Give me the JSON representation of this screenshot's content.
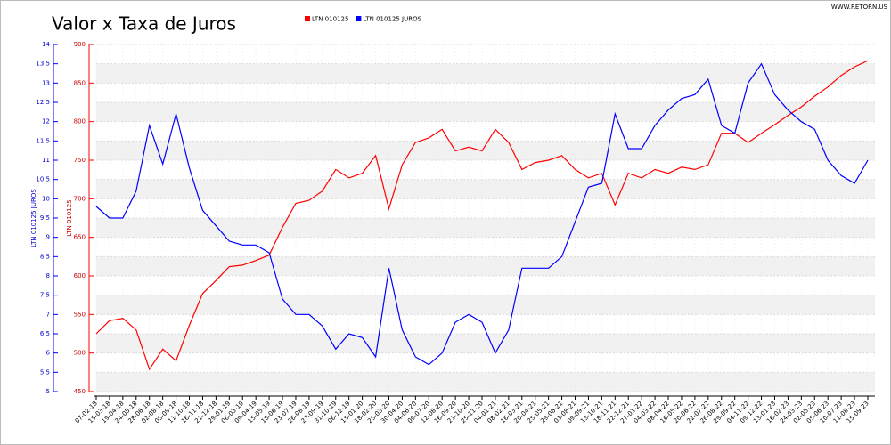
{
  "chart_data": {
    "type": "line",
    "title": "Valor x Taxa de Juros",
    "watermark": "WWW.RETORN.US",
    "categories": [
      "07-02-18",
      "15-03-18",
      "19-04-18",
      "24-05-18",
      "28-06-18",
      "02-08-18",
      "05-09-18",
      "11-10-18",
      "16-11-18",
      "21-12-18",
      "29-01-19",
      "06-03-19",
      "09-04-19",
      "15-05-19",
      "18-06-19",
      "23-07-19",
      "26-08-19",
      "27-09-19",
      "31-10-19",
      "06-12-19",
      "15-01-20",
      "18-02-20",
      "25-03-20",
      "30-04-20",
      "04-06-20",
      "09-07-20",
      "12-08-20",
      "16-09-20",
      "21-10-20",
      "25-11-20",
      "04-01-21",
      "08-02-21",
      "16-03-21",
      "20-04-21",
      "25-05-21",
      "29-06-21",
      "03-08-21",
      "09-09-21",
      "13-10-21",
      "18-11-21",
      "22-12-21",
      "27-01-22",
      "04-03-22",
      "08-04-22",
      "16-05-22",
      "20-06-22",
      "22-07-22",
      "26-08-22",
      "29-09-22",
      "04-11-22",
      "09-12-22",
      "13-01-23",
      "16-02-23",
      "24-03-23",
      "02-05-23",
      "05-06-23",
      "10-07-23",
      "11-08-23",
      "15-09-23"
    ],
    "series": [
      {
        "name": "LTN 010125",
        "color": "#ff0000",
        "axis": "y2",
        "values": [
          525,
          542,
          545,
          530,
          479,
          505,
          490,
          536,
          577,
          594,
          612,
          614,
          620,
          627,
          663,
          694,
          698,
          710,
          738,
          727,
          733,
          756,
          687,
          744,
          773,
          779,
          790,
          762,
          767,
          762,
          790,
          773,
          738,
          747,
          750,
          756,
          738,
          727,
          733,
          692,
          733,
          727,
          738,
          733,
          741,
          738,
          744,
          785,
          785,
          773,
          785,
          796,
          808,
          819,
          833,
          845,
          860,
          871,
          879
        ]
      },
      {
        "name": "LTN 010125 JUROS",
        "color": "#0000ff",
        "values": [
          9.8,
          9.5,
          9.5,
          10.2,
          11.9,
          10.9,
          12.2,
          10.8,
          9.7,
          9.3,
          8.9,
          8.8,
          8.8,
          8.6,
          7.4,
          7.0,
          7.0,
          6.7,
          6.1,
          6.5,
          6.4,
          5.9,
          8.2,
          6.6,
          5.9,
          5.7,
          6.0,
          6.8,
          7.0,
          6.8,
          6.0,
          6.6,
          8.2,
          8.2,
          8.2,
          8.5,
          9.4,
          10.3,
          10.4,
          12.2,
          11.3,
          11.3,
          11.9,
          12.3,
          12.6,
          12.7,
          13.1,
          11.9,
          11.7,
          13.0,
          13.5,
          12.7,
          12.3,
          12.0,
          11.8,
          11.0,
          10.6,
          10.4,
          11.0
        ]
      }
    ],
    "ylabel": "LTN 010125 JUROS",
    "y2label": "LTN 010125",
    "ylim": [
      5,
      14
    ],
    "yticks": [
      5,
      5.5,
      6,
      6.5,
      7,
      7.5,
      8,
      8.5,
      9,
      9.5,
      10,
      10.5,
      11,
      11.5,
      12,
      12.5,
      13,
      13.5,
      14
    ],
    "y2lim": [
      450,
      900
    ],
    "y2ticks": [
      450,
      500,
      550,
      600,
      650,
      700,
      750,
      800,
      850,
      900
    ],
    "grid": true
  }
}
